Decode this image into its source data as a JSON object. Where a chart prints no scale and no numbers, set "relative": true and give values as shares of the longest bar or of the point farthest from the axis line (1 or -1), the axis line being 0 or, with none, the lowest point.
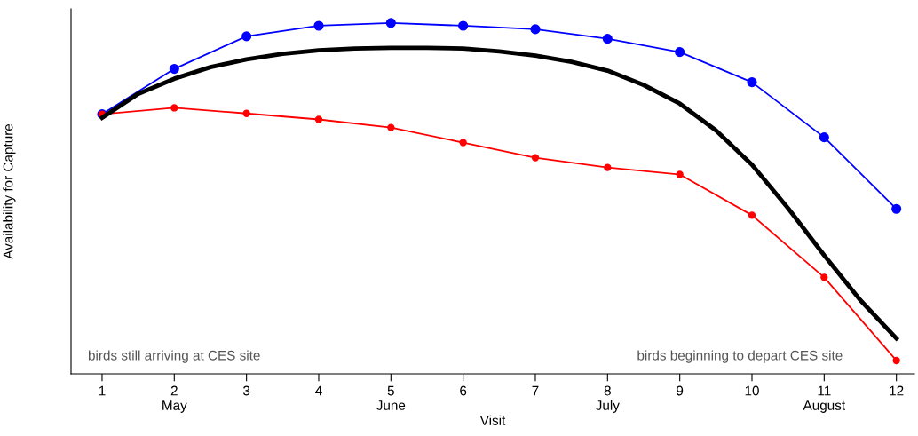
{
  "chart_data": {
    "type": "line",
    "relative": true,
    "xlabel": "Visit",
    "ylabel": "Availability for Capture",
    "xlim": [
      0.57,
      12.25
    ],
    "xticks": [
      1,
      {
        "value": 2,
        "label": "2\nMay"
      },
      3,
      4,
      {
        "value": 5,
        "label": "5\nJune"
      },
      6,
      7,
      {
        "value": 8,
        "label": "8\nJuly"
      },
      9,
      10,
      {
        "value": 11,
        "label": "11\nAugust"
      },
      12
    ],
    "grid": false,
    "legend": false,
    "series": [
      {
        "color": "#0000ff",
        "marker": "circle",
        "x": [
          1,
          2,
          3,
          4,
          5,
          6,
          7,
          8,
          9,
          10,
          11,
          12
        ],
        "values": [
          0.74,
          0.869,
          0.962,
          0.992,
          1,
          0.992,
          0.982,
          0.955,
          0.917,
          0.831,
          0.674,
          0.47
        ]
      },
      {
        "color": "#ff0000",
        "marker": "circle",
        "x": [
          1,
          2,
          3,
          4,
          5,
          6,
          7,
          8,
          9,
          10,
          11,
          12
        ],
        "values": [
          0.74,
          0.758,
          0.742,
          0.725,
          0.702,
          0.659,
          0.616,
          0.588,
          0.568,
          0.452,
          0.275,
          0.038
        ]
      },
      {
        "color": "#000000",
        "marker": "none",
        "x": [
          1,
          1.5,
          2,
          2.5,
          3,
          3.5,
          4,
          4.5,
          5,
          5.5,
          6,
          6.5,
          7,
          7.5,
          8,
          8.5,
          9,
          9.5,
          10,
          10.5,
          11,
          11.5,
          12
        ],
        "values": [
          0.73,
          0.798,
          0.841,
          0.874,
          0.896,
          0.912,
          0.922,
          0.927,
          0.929,
          0.929,
          0.927,
          0.919,
          0.907,
          0.889,
          0.864,
          0.823,
          0.77,
          0.694,
          0.596,
          0.472,
          0.338,
          0.21,
          0.101
        ]
      }
    ],
    "annotations": [
      "birds still arriving at CES site",
      "birds beginning to depart CES site"
    ]
  }
}
